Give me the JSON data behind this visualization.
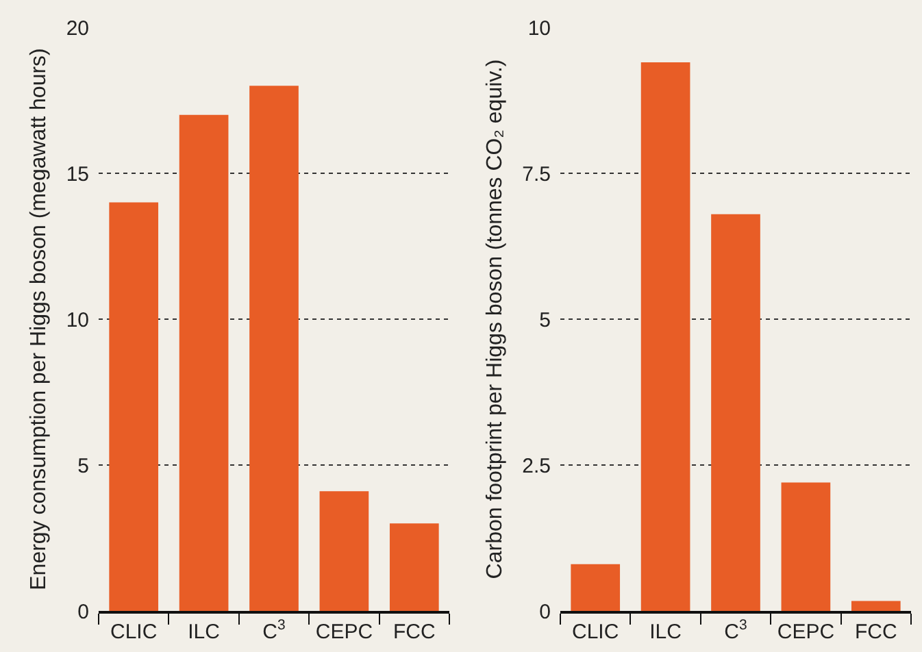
{
  "chart_data": [
    {
      "type": "bar",
      "ylabel": "Energy consumption per Higgs boson (megawatt hours)",
      "categories": [
        "CLIC",
        "ILC",
        "C$^{3}$",
        "CEPC",
        "FCC"
      ],
      "values": [
        14,
        17,
        18,
        4.1,
        3
      ],
      "color": "#e85d26",
      "ylim": [
        0,
        20
      ],
      "yticks": [
        0,
        5,
        10,
        15,
        20
      ],
      "grid": "y"
    },
    {
      "type": "bar",
      "ylabel": "Carbon footprint per Higgs boson (tonnes CO₂ equiv.)",
      "categories": [
        "CLIC",
        "ILC",
        "C$^{3}$",
        "CEPC",
        "FCC"
      ],
      "values": [
        0.8,
        9.4,
        6.8,
        2.2,
        0.17
      ],
      "color": "#e85d26",
      "ylim": [
        0,
        10
      ],
      "yticks": [
        0,
        2.5,
        5,
        7.5,
        10
      ],
      "grid": "y"
    }
  ]
}
